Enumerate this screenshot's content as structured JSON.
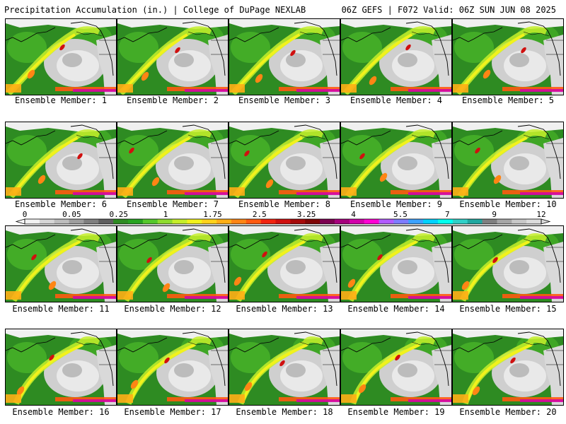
{
  "header": {
    "left": "Precipitation Accumulation (in.) | College of DuPage NEXLAB",
    "right": "06Z GEFS | F072 Valid: 06Z SUN JUN 08 2025"
  },
  "members": [
    "Ensemble Member: 1",
    "Ensemble Member: 2",
    "Ensemble Member: 3",
    "Ensemble Member: 4",
    "Ensemble Member: 5",
    "Ensemble Member: 6",
    "Ensemble Member: 7",
    "Ensemble Member: 8",
    "Ensemble Member: 9",
    "Ensemble Member: 10",
    "Ensemble Member: 11",
    "Ensemble Member: 12",
    "Ensemble Member: 13",
    "Ensemble Member: 14",
    "Ensemble Member: 15",
    "Ensemble Member: 16",
    "Ensemble Member: 17",
    "Ensemble Member: 18",
    "Ensemble Member: 19",
    "Ensemble Member: 20"
  ],
  "colorbar": {
    "labels": [
      "0",
      "0.05",
      "0.25",
      "1",
      "1.75",
      "2.5",
      "3.25",
      "4",
      "5.5",
      "7",
      "9",
      "12"
    ],
    "colors": [
      "#f2f2f2",
      "#d6d6d6",
      "#bdbdbd",
      "#9e9e9e",
      "#7f7f7f",
      "#5f5f5f",
      "#2e8b22",
      "#27a320",
      "#55c82b",
      "#8fdc2f",
      "#c6ee2a",
      "#f2f21c",
      "#ffd21a",
      "#ffae16",
      "#ff8514",
      "#ff5a10",
      "#f2230f",
      "#d0100f",
      "#a60a0a",
      "#7f0606",
      "#7c0050",
      "#a6007d",
      "#d200aa",
      "#ff00d4",
      "#b25bff",
      "#7e7cff",
      "#3ca2ff",
      "#00d2ff",
      "#00ffee",
      "#30d0c8",
      "#20a8a0",
      "#808080",
      "#a6a6a6",
      "#c8c8c8",
      "#dcdcdc"
    ]
  }
}
